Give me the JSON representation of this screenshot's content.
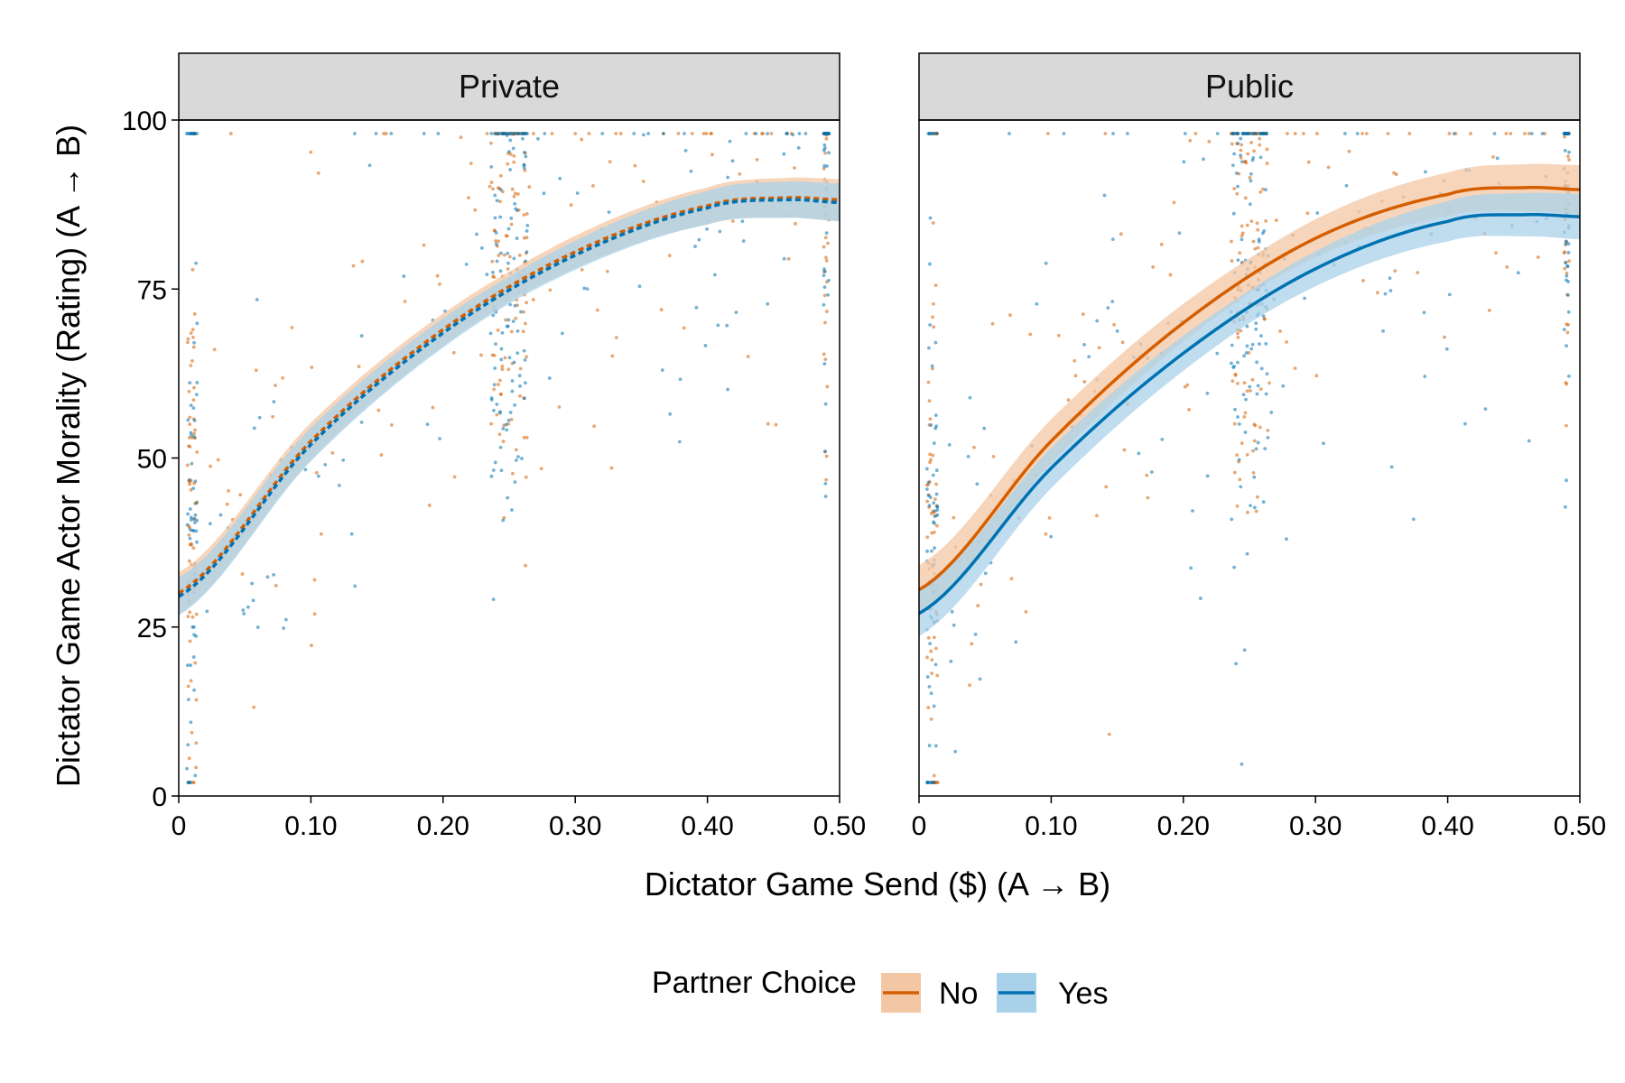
{
  "chart_data": {
    "type": "scatter",
    "xlabel": "Dictator Game Send ($) (A → B)",
    "ylabel": "Dictator Game Actor Morality (Rating) (A → B)",
    "xlim": [
      0,
      0.5
    ],
    "ylim": [
      0,
      100
    ],
    "x_ticks": [
      "0",
      "0.10",
      "0.20",
      "0.30",
      "0.40",
      "0.50"
    ],
    "x_tick_values": [
      0,
      0.1,
      0.2,
      0.3,
      0.4,
      0.5
    ],
    "y_ticks": [
      "0",
      "25",
      "50",
      "75",
      "100"
    ],
    "y_tick_values": [
      0,
      25,
      50,
      75,
      100
    ],
    "grid": false,
    "legend": {
      "title": "Partner Choice",
      "position": "bottom",
      "entries": [
        {
          "label": "No",
          "color": "#D55E00",
          "fill": "#F4C7A4"
        },
        {
          "label": "Yes",
          "color": "#0072B2",
          "fill": "#A9D1E9"
        }
      ]
    },
    "panels": [
      {
        "title": "Private",
        "curves": [
          {
            "group": "No",
            "line_style": "dashed",
            "x": [
              0,
              0.1,
              0.2,
              0.3,
              0.4,
              0.46,
              0.5
            ],
            "y": [
              30,
              52.5,
              69,
              80.5,
              87.3,
              88.5,
              88.2
            ],
            "band_halfwidth": 2.2
          },
          {
            "group": "Yes",
            "line_style": "dashed",
            "x": [
              0,
              0.1,
              0.2,
              0.3,
              0.4,
              0.46,
              0.5
            ],
            "y": [
              29.5,
              52,
              68.5,
              80,
              87,
              88.2,
              87.8
            ],
            "band_halfwidth": 2.0
          }
        ]
      },
      {
        "title": "Public",
        "curves": [
          {
            "group": "No",
            "line_style": "solid",
            "x": [
              0,
              0.1,
              0.2,
              0.3,
              0.4,
              0.46,
              0.5
            ],
            "y": [
              30.5,
              52.5,
              70,
              82.5,
              89,
              90,
              89.7
            ],
            "band_halfwidth": 2.6
          },
          {
            "group": "Yes",
            "line_style": "solid",
            "x": [
              0,
              0.1,
              0.2,
              0.3,
              0.4,
              0.46,
              0.5
            ],
            "y": [
              27,
              48.5,
              65.5,
              78,
              85,
              86,
              85.7
            ],
            "band_halfwidth": 2.4
          }
        ]
      }
    ],
    "scatter_description": "Individual ratings for groups No and Yes, clustered at sends 0.01, 0.25 and 0.49"
  },
  "colors": {
    "no_line": "#D55E00",
    "no_band": "#F4C7A4",
    "yes_line": "#0072B2",
    "yes_band": "#A9D1E9",
    "strip_bg": "#D9D9D9"
  }
}
